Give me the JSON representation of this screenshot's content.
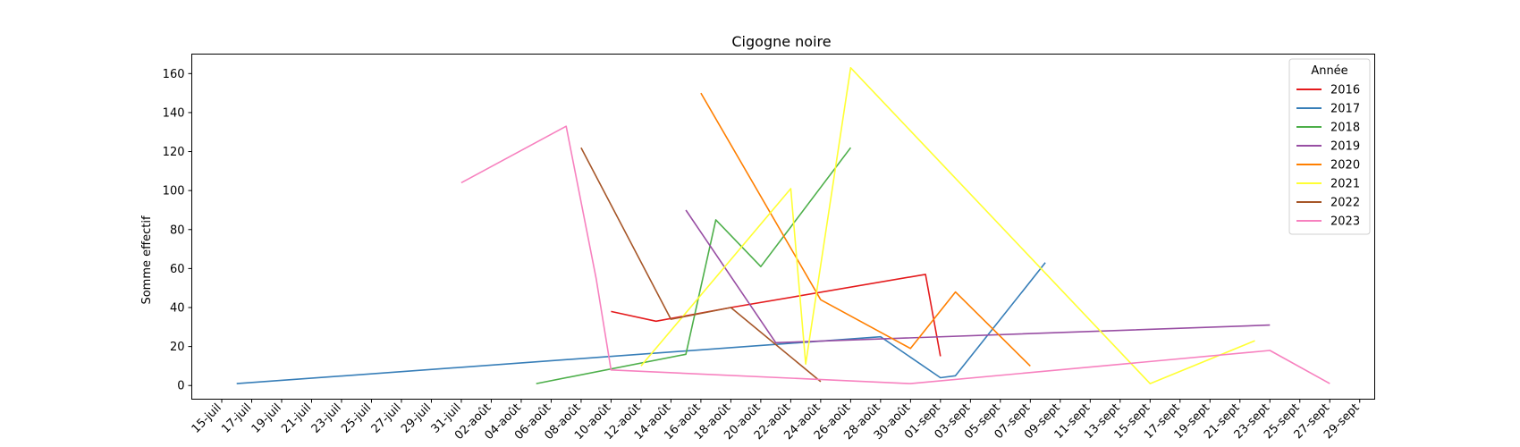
{
  "chart_data": {
    "type": "line",
    "title": "Cigogne noire",
    "xlabel": "",
    "ylabel": "Somme effectif",
    "ylim": [
      -7,
      170
    ],
    "yticks": [
      0,
      20,
      40,
      60,
      80,
      100,
      120,
      140,
      160
    ],
    "grid": false,
    "legend": {
      "title": "Année",
      "placement": "top-right"
    },
    "x_tick_labels": [
      "15-juil",
      "17-juil",
      "19-juil",
      "21-juil",
      "23-juil",
      "25-juil",
      "27-juil",
      "29-juil",
      "31-juil",
      "02-août",
      "04-août",
      "06-août",
      "08-août",
      "10-août",
      "12-août",
      "14-août",
      "16-août",
      "18-août",
      "20-août",
      "22-août",
      "24-août",
      "26-août",
      "28-août",
      "30-août",
      "01-sept",
      "03-sept",
      "05-sept",
      "07-sept",
      "09-sept",
      "11-sept",
      "13-sept",
      "15-sept",
      "17-sept",
      "19-sept",
      "21-sept",
      "23-sept",
      "25-sept",
      "27-sept",
      "29-sept"
    ],
    "series": [
      {
        "name": "2016",
        "color": "#e41a1c",
        "points": [
          [
            "10-août",
            38
          ],
          [
            "13-août",
            33
          ],
          [
            "18-août",
            40
          ],
          [
            "31-août",
            57
          ],
          [
            "01-sept",
            15
          ]
        ]
      },
      {
        "name": "2017",
        "color": "#377eb8",
        "points": [
          [
            "16-juil",
            1
          ],
          [
            "28-août",
            25
          ],
          [
            "01-sept",
            4
          ],
          [
            "02-sept",
            5
          ],
          [
            "08-sept",
            63
          ]
        ]
      },
      {
        "name": "2018",
        "color": "#4daf4a",
        "points": [
          [
            "05-août",
            1
          ],
          [
            "15-août",
            16
          ],
          [
            "17-août",
            85
          ],
          [
            "20-août",
            61
          ],
          [
            "26-août",
            122
          ]
        ]
      },
      {
        "name": "2019",
        "color": "#984ea3",
        "points": [
          [
            "15-août",
            90
          ],
          [
            "21-août",
            22
          ],
          [
            "23-sept",
            31
          ]
        ]
      },
      {
        "name": "2020",
        "color": "#ff7f00",
        "points": [
          [
            "16-août",
            150
          ],
          [
            "24-août",
            44
          ],
          [
            "30-août",
            19
          ],
          [
            "02-sept",
            48
          ],
          [
            "07-sept",
            10
          ]
        ]
      },
      {
        "name": "2021",
        "color": "#ffff33",
        "points": [
          [
            "12-août",
            10
          ],
          [
            "22-août",
            101
          ],
          [
            "23-août",
            11
          ],
          [
            "26-août",
            163
          ],
          [
            "15-sept",
            1
          ],
          [
            "22-sept",
            23
          ]
        ]
      },
      {
        "name": "2022",
        "color": "#a65628",
        "points": [
          [
            "08-août",
            122
          ],
          [
            "14-août",
            34
          ],
          [
            "18-août",
            40
          ],
          [
            "24-août",
            2
          ]
        ]
      },
      {
        "name": "2023",
        "color": "#f781bf",
        "points": [
          [
            "31-juil",
            104
          ],
          [
            "07-août",
            133
          ],
          [
            "09-août",
            55
          ],
          [
            "10-août",
            8
          ],
          [
            "30-août",
            1
          ],
          [
            "23-sept",
            18
          ],
          [
            "27-sept",
            1
          ]
        ]
      }
    ]
  }
}
